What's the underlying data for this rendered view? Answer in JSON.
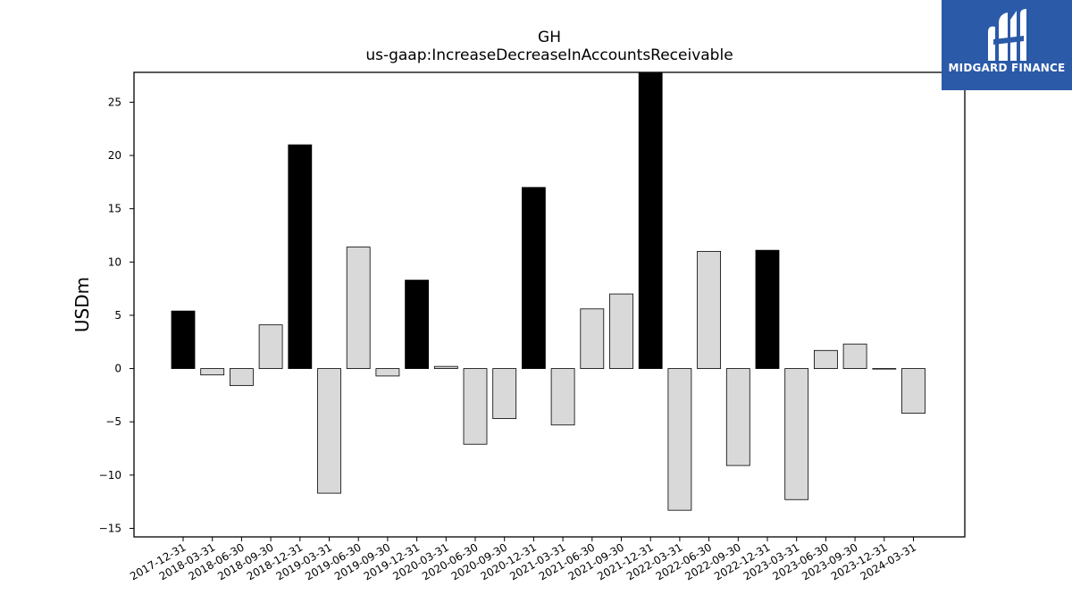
{
  "logo": {
    "text": "MIDGARD FINANCE",
    "background": "#2b5aa8"
  },
  "chart_data": {
    "type": "bar",
    "title": "GH",
    "subtitle": "us-gaap:IncreaseDecreaseInAccountsReceivable",
    "xlabel": "",
    "ylabel": "USDm",
    "ylim": [
      -15.8,
      27.8
    ],
    "yticks": [
      -15,
      -10,
      -5,
      0,
      5,
      10,
      15,
      20,
      25
    ],
    "ytick_labels": [
      "−15",
      "−10",
      "−5",
      "0",
      "5",
      "10",
      "15",
      "20",
      "25"
    ],
    "grid": false,
    "categories": [
      "2017-12-31",
      "2018-03-31",
      "2018-06-30",
      "2018-09-30",
      "2018-12-31",
      "2019-03-31",
      "2019-06-30",
      "2019-09-30",
      "2019-12-31",
      "2020-03-31",
      "2020-06-30",
      "2020-09-30",
      "2020-12-31",
      "2021-03-31",
      "2021-06-30",
      "2021-09-30",
      "2021-12-31",
      "2022-03-31",
      "2022-06-30",
      "2022-09-30",
      "2022-12-31",
      "2023-03-31",
      "2023-06-30",
      "2023-09-30",
      "2023-12-31",
      "2024-03-31"
    ],
    "values": [
      5.4,
      -0.6,
      -1.6,
      4.1,
      21.0,
      -11.7,
      11.4,
      -0.7,
      8.3,
      0.2,
      -7.1,
      -4.7,
      17.0,
      -5.3,
      5.6,
      7.0,
      28.5,
      -13.3,
      11.0,
      -9.1,
      11.1,
      -12.3,
      1.7,
      2.3,
      0.0,
      -4.2
    ],
    "colors": {
      "q4": "#000000",
      "other": "#d9d9d9",
      "edge": "#000000"
    }
  }
}
